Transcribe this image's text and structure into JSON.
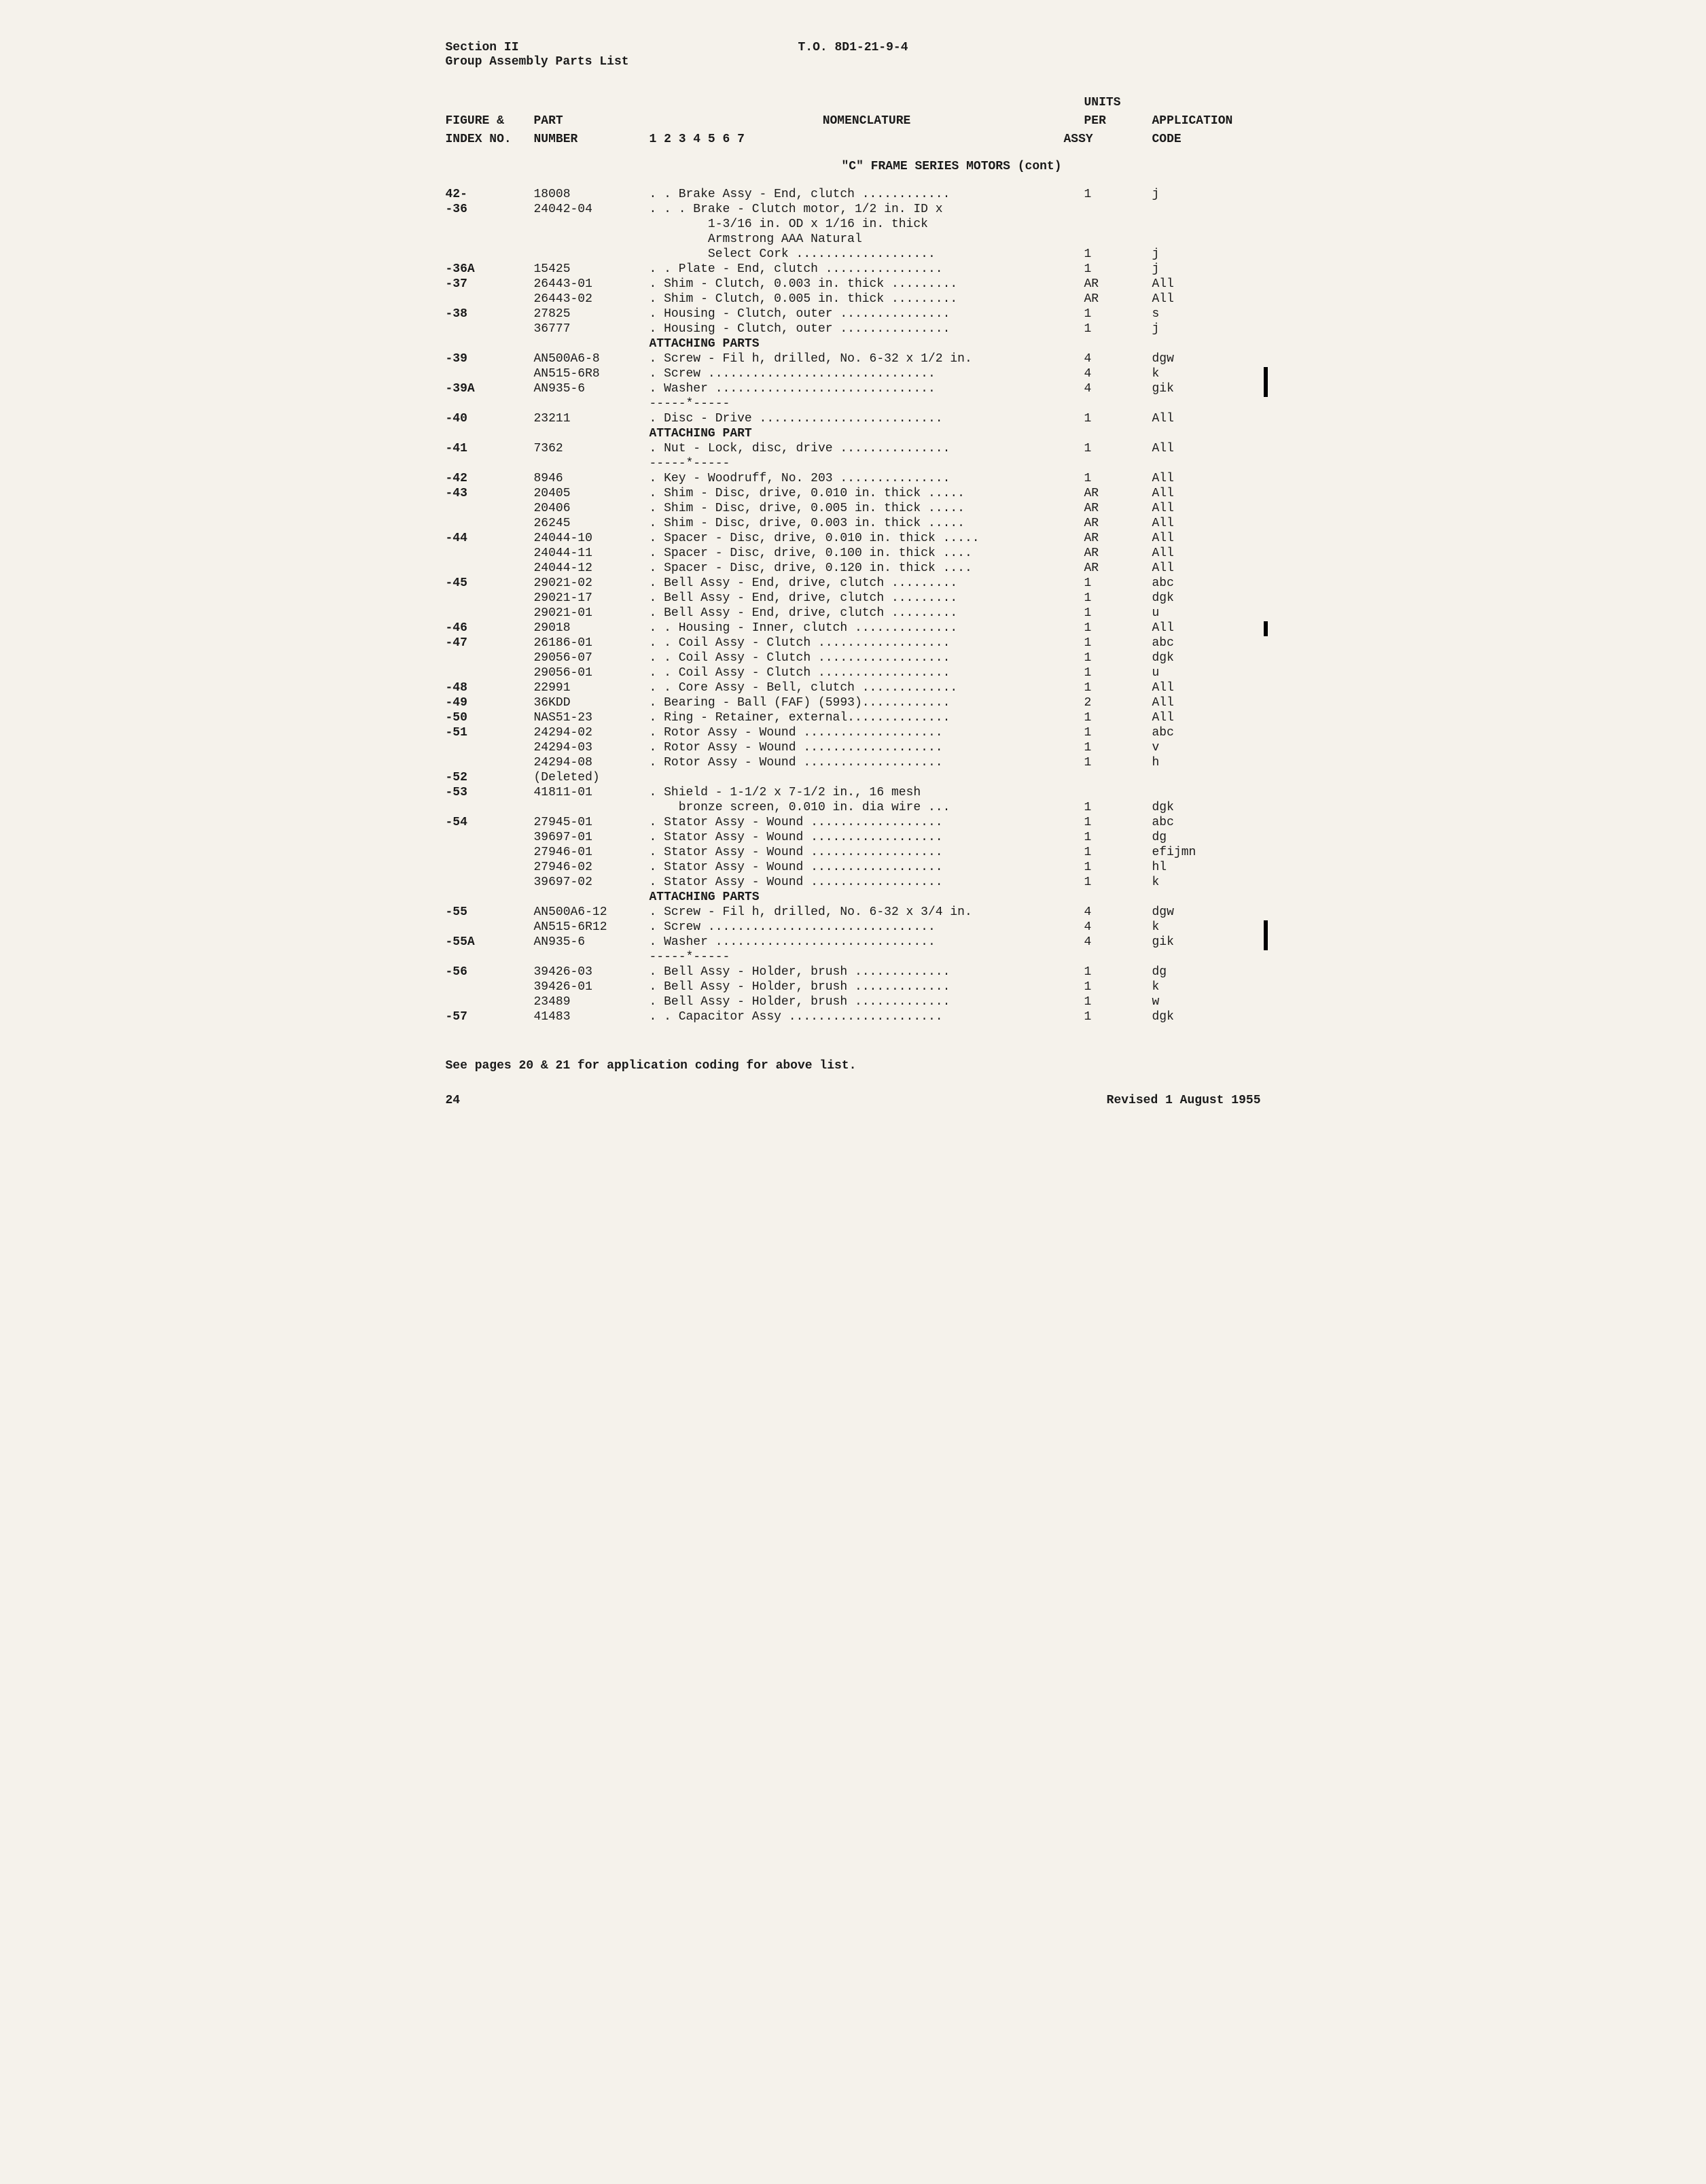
{
  "header": {
    "section": "Section II",
    "subtitle": "Group Assembly Parts List",
    "to_number": "T.O. 8D1-21-9-4"
  },
  "columns": {
    "index1": "FIGURE &",
    "index2": "INDEX NO.",
    "part1": "PART",
    "part2": "NUMBER",
    "nomen1": "NOMENCLATURE",
    "nomen2": "1 2 3 4 5 6 7",
    "units1": "UNITS",
    "units2": "PER",
    "units3": "ASSY",
    "app1": "APPLICATION",
    "app2": "CODE"
  },
  "group_title": "\"C\" FRAME SERIES MOTORS (cont)",
  "rows": [
    {
      "idx": "42-",
      "part": "18008",
      "nomen": ". . Brake Assy - End, clutch ............",
      "units": "1",
      "app": "j"
    },
    {
      "idx": "  -36",
      "part": "24042-04",
      "nomen": ". . . Brake - Clutch motor, 1/2 in. ID x",
      "units": "",
      "app": ""
    },
    {
      "idx": "",
      "part": "",
      "nomen": "        1-3/16 in. OD x 1/16 in. thick",
      "units": "",
      "app": ""
    },
    {
      "idx": "",
      "part": "",
      "nomen": "        Armstrong AAA Natural",
      "units": "",
      "app": ""
    },
    {
      "idx": "",
      "part": "",
      "nomen": "        Select Cork ...................",
      "units": "1",
      "app": "j"
    },
    {
      "idx": "  -36A",
      "part": "15425",
      "nomen": ". . Plate - End, clutch ................",
      "units": "1",
      "app": "j"
    },
    {
      "idx": "  -37",
      "part": "26443-01",
      "nomen": ". Shim - Clutch, 0.003 in. thick .........",
      "units": "AR",
      "app": "All"
    },
    {
      "idx": "",
      "part": "26443-02",
      "nomen": ". Shim - Clutch, 0.005 in. thick .........",
      "units": "AR",
      "app": "All"
    },
    {
      "idx": "  -38",
      "part": "27825",
      "nomen": ". Housing - Clutch, outer ...............",
      "units": "1",
      "app": "s"
    },
    {
      "idx": "",
      "part": "36777",
      "nomen": ". Housing - Clutch, outer ...............",
      "units": "1",
      "app": "j"
    },
    {
      "idx": "",
      "part": "",
      "nomen": "ATTACHING PARTS",
      "units": "",
      "app": "",
      "hdr": true
    },
    {
      "idx": "  -39",
      "part": "AN500A6-8",
      "nomen": ". Screw - Fil h, drilled, No. 6-32 x 1/2 in.",
      "units": "4",
      "app": "dgw"
    },
    {
      "idx": "",
      "part": "AN515-6R8",
      "nomen": ". Screw ...............................",
      "units": "4",
      "app": "k",
      "rev": true
    },
    {
      "idx": "  -39A",
      "part": "AN935-6",
      "nomen": ". Washer ..............................",
      "units": "4",
      "app": "gik",
      "rev": true
    },
    {
      "idx": "",
      "part": "",
      "nomen": "-----*-----",
      "units": "",
      "app": ""
    },
    {
      "idx": "  -40",
      "part": "23211",
      "nomen": ". Disc - Drive .........................",
      "units": "1",
      "app": "All"
    },
    {
      "idx": "",
      "part": "",
      "nomen": "ATTACHING PART",
      "units": "",
      "app": "",
      "hdr": true
    },
    {
      "idx": "  -41",
      "part": "7362",
      "nomen": ". Nut - Lock, disc, drive ...............",
      "units": "1",
      "app": "All"
    },
    {
      "idx": "",
      "part": "",
      "nomen": "-----*-----",
      "units": "",
      "app": ""
    },
    {
      "idx": "  -42",
      "part": "8946",
      "nomen": ". Key - Woodruff, No. 203 ...............",
      "units": "1",
      "app": "All"
    },
    {
      "idx": "  -43",
      "part": "20405",
      "nomen": ". Shim - Disc, drive, 0.010 in. thick .....",
      "units": "AR",
      "app": "All"
    },
    {
      "idx": "",
      "part": "20406",
      "nomen": ". Shim - Disc, drive, 0.005 in. thick .....",
      "units": "AR",
      "app": "All"
    },
    {
      "idx": "",
      "part": "26245",
      "nomen": ". Shim - Disc, drive, 0.003 in. thick .....",
      "units": "AR",
      "app": "All"
    },
    {
      "idx": "  -44",
      "part": "24044-10",
      "nomen": ". Spacer - Disc, drive, 0.010 in. thick .....",
      "units": "AR",
      "app": "All"
    },
    {
      "idx": "",
      "part": "24044-11",
      "nomen": ". Spacer - Disc, drive, 0.100 in. thick ....",
      "units": "AR",
      "app": "All"
    },
    {
      "idx": "",
      "part": "24044-12",
      "nomen": ". Spacer - Disc, drive, 0.120 in. thick ....",
      "units": "AR",
      "app": "All"
    },
    {
      "idx": "  -45",
      "part": "29021-02",
      "nomen": ". Bell Assy - End, drive, clutch .........",
      "units": "1",
      "app": "abc"
    },
    {
      "idx": "",
      "part": "29021-17",
      "nomen": ". Bell Assy - End, drive, clutch .........",
      "units": "1",
      "app": "dgk"
    },
    {
      "idx": "",
      "part": "29021-01",
      "nomen": ". Bell Assy - End, drive, clutch .........",
      "units": "1",
      "app": "u"
    },
    {
      "idx": "  -46",
      "part": "29018",
      "nomen": ". . Housing - Inner, clutch ..............",
      "units": "1",
      "app": "All",
      "rev": true
    },
    {
      "idx": "  -47",
      "part": "26186-01",
      "nomen": ". . Coil Assy - Clutch ..................",
      "units": "1",
      "app": "abc"
    },
    {
      "idx": "",
      "part": "29056-07",
      "nomen": ". . Coil Assy - Clutch ..................",
      "units": "1",
      "app": "dgk"
    },
    {
      "idx": "",
      "part": "29056-01",
      "nomen": ". . Coil Assy - Clutch ..................",
      "units": "1",
      "app": "u"
    },
    {
      "idx": "  -48",
      "part": "22991",
      "nomen": ". . Core Assy - Bell, clutch .............",
      "units": "1",
      "app": "All"
    },
    {
      "idx": "  -49",
      "part": "36KDD",
      "nomen": ". Bearing - Ball (FAF) (5993)............",
      "units": "2",
      "app": "All"
    },
    {
      "idx": "  -50",
      "part": "NAS51-23",
      "nomen": ". Ring - Retainer, external..............",
      "units": "1",
      "app": "All"
    },
    {
      "idx": "  -51",
      "part": "24294-02",
      "nomen": ". Rotor Assy - Wound ...................",
      "units": "1",
      "app": "abc"
    },
    {
      "idx": "",
      "part": "24294-03",
      "nomen": ". Rotor Assy - Wound ...................",
      "units": "1",
      "app": "v"
    },
    {
      "idx": "",
      "part": "24294-08",
      "nomen": ". Rotor Assy - Wound ...................",
      "units": "1",
      "app": "h"
    },
    {
      "idx": "  -52",
      "part": "(Deleted)",
      "nomen": "",
      "units": "",
      "app": ""
    },
    {
      "idx": "  -53",
      "part": "41811-01",
      "nomen": ". Shield - 1-1/2 x 7-1/2 in., 16 mesh",
      "units": "",
      "app": ""
    },
    {
      "idx": "",
      "part": "",
      "nomen": "    bronze screen, 0.010 in. dia wire ...",
      "units": "1",
      "app": "dgk"
    },
    {
      "idx": "  -54",
      "part": "27945-01",
      "nomen": ". Stator Assy - Wound ..................",
      "units": "1",
      "app": "abc"
    },
    {
      "idx": "",
      "part": "39697-01",
      "nomen": ". Stator Assy - Wound ..................",
      "units": "1",
      "app": "dg"
    },
    {
      "idx": "",
      "part": "27946-01",
      "nomen": ". Stator Assy - Wound ..................",
      "units": "1",
      "app": "efijmn"
    },
    {
      "idx": "",
      "part": "27946-02",
      "nomen": ". Stator Assy - Wound ..................",
      "units": "1",
      "app": "hl"
    },
    {
      "idx": "",
      "part": "39697-02",
      "nomen": ". Stator Assy - Wound ..................",
      "units": "1",
      "app": "k"
    },
    {
      "idx": "",
      "part": "",
      "nomen": "ATTACHING PARTS",
      "units": "",
      "app": "",
      "hdr": true
    },
    {
      "idx": "  -55",
      "part": "AN500A6-12",
      "nomen": ". Screw - Fil h, drilled, No. 6-32 x 3/4 in.",
      "units": "4",
      "app": "dgw"
    },
    {
      "idx": "",
      "part": "AN515-6R12",
      "nomen": ". Screw ...............................",
      "units": "4",
      "app": "k",
      "rev": true
    },
    {
      "idx": "  -55A",
      "part": "AN935-6",
      "nomen": ". Washer ..............................",
      "units": "4",
      "app": "gik",
      "rev": true
    },
    {
      "idx": "",
      "part": "",
      "nomen": "-----*-----",
      "units": "",
      "app": ""
    },
    {
      "idx": "  -56",
      "part": "39426-03",
      "nomen": ". Bell Assy - Holder, brush .............",
      "units": "1",
      "app": "dg"
    },
    {
      "idx": "",
      "part": "39426-01",
      "nomen": ". Bell Assy - Holder, brush .............",
      "units": "1",
      "app": "k"
    },
    {
      "idx": "",
      "part": "23489",
      "nomen": ". Bell Assy - Holder, brush .............",
      "units": "1",
      "app": "w"
    },
    {
      "idx": "  -57",
      "part": "41483",
      "nomen": ". . Capacitor Assy .....................",
      "units": "1",
      "app": "dgk"
    }
  ],
  "footer_note": "See pages 20 & 21 for application coding for above list.",
  "page_number": "24",
  "revision": "Revised 1 August 1955"
}
